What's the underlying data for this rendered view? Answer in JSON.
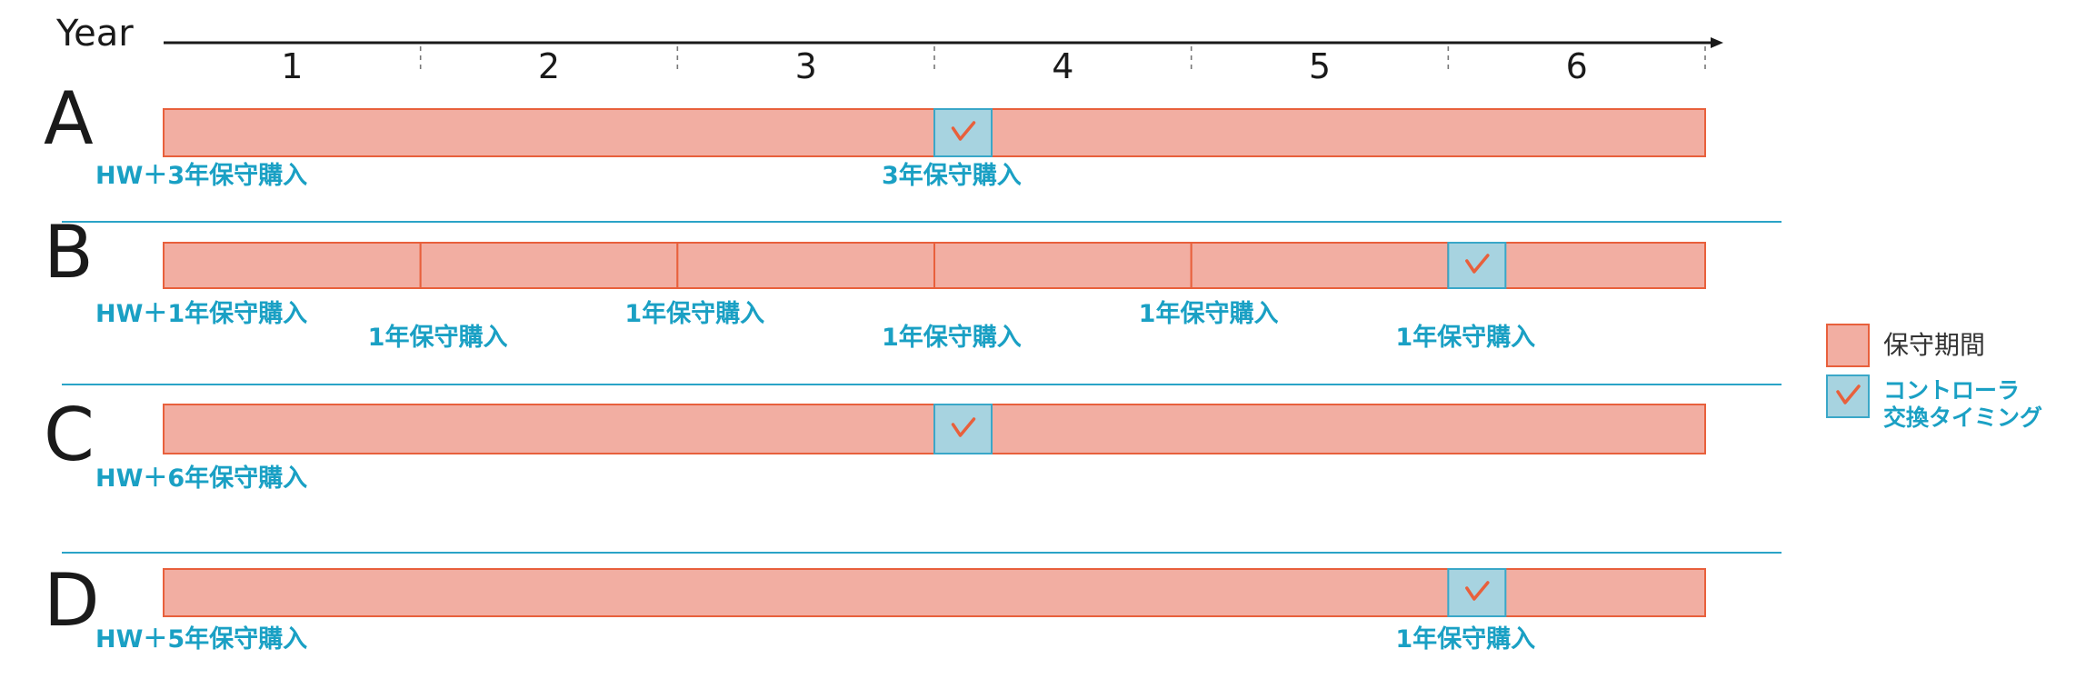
{
  "axis": {
    "label": "Year",
    "years": [
      "1",
      "2",
      "3",
      "4",
      "5",
      "6"
    ]
  },
  "rows": [
    {
      "letter": "A",
      "segments": [
        [
          0,
          6
        ]
      ],
      "check_year": 3.0,
      "annotations": [
        {
          "text": "HW＋3年保守購入",
          "at": 0.0,
          "line": 1
        },
        {
          "text": "3年保守購入",
          "at": 3.0,
          "line": 1
        }
      ]
    },
    {
      "letter": "B",
      "segments": [
        [
          0,
          1
        ],
        [
          1,
          2
        ],
        [
          2,
          3
        ],
        [
          3,
          4
        ],
        [
          4,
          5
        ],
        [
          5,
          6
        ]
      ],
      "check_year": 5.0,
      "annotations": [
        {
          "text": "HW＋1年保守購入",
          "at": 0.0,
          "line": 1
        },
        {
          "text": "1年保守購入",
          "at": 1.0,
          "line": 2
        },
        {
          "text": "1年保守購入",
          "at": 2.0,
          "line": 1
        },
        {
          "text": "1年保守購入",
          "at": 3.0,
          "line": 2
        },
        {
          "text": "1年保守購入",
          "at": 4.0,
          "line": 1
        },
        {
          "text": "1年保守購入",
          "at": 5.0,
          "line": 2
        }
      ]
    },
    {
      "letter": "C",
      "segments": [
        [
          0,
          6
        ]
      ],
      "check_year": 3.0,
      "annotations": [
        {
          "text": "HW＋6年保守購入",
          "at": 0.0,
          "line": 1
        }
      ]
    },
    {
      "letter": "D",
      "segments": [
        [
          0,
          6
        ]
      ],
      "check_year": 5.0,
      "annotations": [
        {
          "text": "HW＋5年保守購入",
          "at": 0.0,
          "line": 1
        },
        {
          "text": "1年保守購入",
          "at": 5.0,
          "line": 1
        }
      ]
    }
  ],
  "legend": {
    "maintenance_label": "保守期間",
    "controller_label_line1": "コントローラ",
    "controller_label_line2": "交換タイミング"
  },
  "colors": {
    "bar_fill": "#f2aea2",
    "bar_stroke": "#e8603c",
    "check_fill": "#a7d3e0",
    "check_stroke": "#3aa7c8",
    "check_mark": "#e8603c",
    "annotation": "#1aa0c4",
    "separator": "#2aa3c7",
    "axis": "#1a1a1a"
  }
}
